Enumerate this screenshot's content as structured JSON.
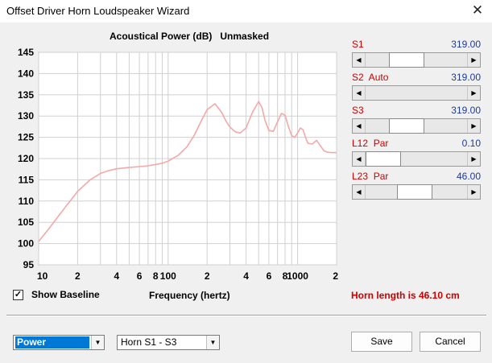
{
  "window": {
    "title": "Offset Driver Horn Loudspeaker Wizard",
    "close_glyph": "✕"
  },
  "chart_data": {
    "type": "line",
    "title": "Acoustical Power (dB)   Unmasked",
    "xlabel": "Frequency (hertz)",
    "ylabel": "",
    "xscale": "log",
    "xlim": [
      10,
      2000
    ],
    "ylim": [
      95,
      145
    ],
    "yticks": [
      95,
      100,
      105,
      110,
      115,
      120,
      125,
      130,
      135,
      140,
      145
    ],
    "xtick_labels": [
      {
        "x": 10,
        "label": "10"
      },
      {
        "x": 20,
        "label": "2"
      },
      {
        "x": 40,
        "label": "4"
      },
      {
        "x": 60,
        "label": "6"
      },
      {
        "x": 80,
        "label": "8"
      },
      {
        "x": 100,
        "label": "100"
      },
      {
        "x": 200,
        "label": "2"
      },
      {
        "x": 400,
        "label": "4"
      },
      {
        "x": 600,
        "label": "6"
      },
      {
        "x": 800,
        "label": "8"
      },
      {
        "x": 1000,
        "label": "1000"
      },
      {
        "x": 2000,
        "label": "2"
      }
    ],
    "grid": true,
    "series_color": "#f4a8a8",
    "series": [
      {
        "x": [
          10,
          12,
          14,
          16,
          18,
          20,
          25,
          30,
          35,
          40,
          50,
          60,
          70,
          80,
          90,
          100,
          120,
          140,
          160,
          180,
          200,
          230,
          260,
          280,
          300,
          330,
          360,
          400,
          450,
          500,
          530,
          560,
          600,
          650,
          700,
          750,
          800,
          850,
          900,
          950,
          1000,
          1050,
          1100,
          1150,
          1200,
          1300,
          1400,
          1500,
          1600,
          1700,
          1800,
          2000
        ],
        "y": [
          100.5,
          103.5,
          106.2,
          108.5,
          110.5,
          112.3,
          115.0,
          116.5,
          117.2,
          117.6,
          117.9,
          118.1,
          118.3,
          118.6,
          118.9,
          119.4,
          120.8,
          122.8,
          125.6,
          128.8,
          131.5,
          132.9,
          130.8,
          128.8,
          127.4,
          126.3,
          126.0,
          127.2,
          131.0,
          133.4,
          132.0,
          129.0,
          126.6,
          126.4,
          128.7,
          130.6,
          130.2,
          127.5,
          125.4,
          125.0,
          126.0,
          127.2,
          126.8,
          125.0,
          123.6,
          123.4,
          124.3,
          123.0,
          121.8,
          121.5,
          121.4,
          121.4
        ]
      }
    ]
  },
  "controls": [
    {
      "name": "S1",
      "value": "319.00",
      "position": 0.34
    },
    {
      "name": "S2  Auto",
      "value": "319.00",
      "position": null
    },
    {
      "name": "S3",
      "value": "319.00",
      "position": 0.34
    },
    {
      "name": "L12  Par",
      "value": "0.10",
      "position": 0.0
    },
    {
      "name": "L23  Par",
      "value": "46.00",
      "position": 0.46
    }
  ],
  "slider_arrows": {
    "left": "◀",
    "right": "▶"
  },
  "show_baseline": {
    "label": "Show Baseline",
    "checked": true,
    "check_glyph": "✓"
  },
  "horn_length": "Horn length is 46.10 cm",
  "power_select": {
    "value": "Power",
    "arrow": "▼"
  },
  "horn_select": {
    "value": "Horn S1 - S3",
    "arrow": "▼"
  },
  "buttons": {
    "save": "Save",
    "cancel": "Cancel"
  }
}
